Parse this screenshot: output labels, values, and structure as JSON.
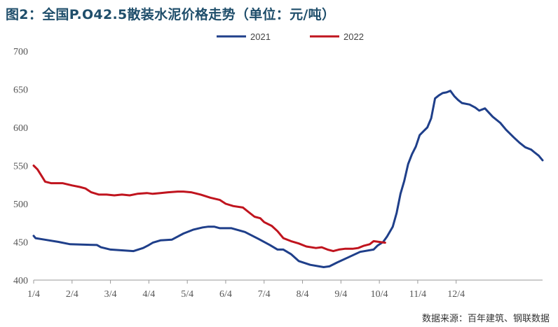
{
  "title": "图2：全国P.O42.5散装水泥价格走势（单位：元/吨）",
  "source": "数据来源：百年建筑、钢联数据",
  "chart_data": {
    "type": "line",
    "title": "图2：全国P.O42.5散装水泥价格走势（单位：元/吨）",
    "xlabel": "",
    "ylabel": "",
    "ylim": [
      400,
      700
    ],
    "yticks": [
      400,
      450,
      500,
      550,
      600,
      650,
      700
    ],
    "categories": [
      "1/4",
      "2/4",
      "3/4",
      "4/4",
      "5/4",
      "6/4",
      "7/4",
      "8/4",
      "9/4",
      "10/4",
      "11/4",
      "12/4"
    ],
    "grid": false,
    "legend": "top-center",
    "series": [
      {
        "name": "2021",
        "color": "#1f3f8a",
        "points": [
          [
            0.0,
            458
          ],
          [
            0.05,
            455
          ],
          [
            0.28,
            453
          ],
          [
            0.65,
            450
          ],
          [
            0.95,
            447
          ],
          [
            1.65,
            446
          ],
          [
            1.75,
            443
          ],
          [
            2.0,
            440
          ],
          [
            2.3,
            439
          ],
          [
            2.6,
            438
          ],
          [
            2.85,
            442
          ],
          [
            3.0,
            446
          ],
          [
            3.1,
            449
          ],
          [
            3.3,
            452
          ],
          [
            3.6,
            453
          ],
          [
            3.9,
            461
          ],
          [
            4.15,
            466
          ],
          [
            4.4,
            469
          ],
          [
            4.55,
            470
          ],
          [
            4.7,
            470
          ],
          [
            4.85,
            468
          ],
          [
            5.15,
            468
          ],
          [
            5.5,
            463
          ],
          [
            5.85,
            454
          ],
          [
            6.15,
            446
          ],
          [
            6.35,
            440
          ],
          [
            6.5,
            440
          ],
          [
            6.7,
            434
          ],
          [
            6.9,
            425
          ],
          [
            7.2,
            420
          ],
          [
            7.55,
            417
          ],
          [
            7.7,
            418
          ],
          [
            7.9,
            423
          ],
          [
            8.2,
            430
          ],
          [
            8.5,
            437
          ],
          [
            8.85,
            440
          ],
          [
            8.95,
            445
          ],
          [
            9.1,
            450
          ],
          [
            9.2,
            457
          ],
          [
            9.35,
            470
          ],
          [
            9.45,
            488
          ],
          [
            9.55,
            513
          ],
          [
            9.65,
            530
          ],
          [
            9.75,
            552
          ],
          [
            9.85,
            565
          ],
          [
            9.95,
            575
          ],
          [
            10.05,
            590
          ],
          [
            10.15,
            595
          ],
          [
            10.25,
            600
          ],
          [
            10.35,
            612
          ],
          [
            10.45,
            638
          ],
          [
            10.55,
            642
          ],
          [
            10.65,
            645
          ],
          [
            10.75,
            646
          ],
          [
            10.85,
            648
          ],
          [
            10.95,
            641
          ],
          [
            11.05,
            636
          ],
          [
            11.15,
            632
          ],
          [
            11.35,
            630
          ],
          [
            11.5,
            626
          ],
          [
            11.6,
            622
          ],
          [
            11.75,
            625
          ],
          [
            11.95,
            614
          ],
          [
            12.15,
            606
          ],
          [
            12.3,
            597
          ],
          [
            12.5,
            587
          ],
          [
            12.65,
            580
          ],
          [
            12.8,
            574
          ],
          [
            12.95,
            571
          ],
          [
            13.05,
            567
          ],
          [
            13.15,
            563
          ],
          [
            13.25,
            557
          ]
        ]
      },
      {
        "name": "2022",
        "color": "#c0141e",
        "points": [
          [
            0.0,
            550
          ],
          [
            0.1,
            545
          ],
          [
            0.2,
            537
          ],
          [
            0.3,
            529
          ],
          [
            0.45,
            527
          ],
          [
            0.75,
            527
          ],
          [
            1.0,
            524
          ],
          [
            1.2,
            522
          ],
          [
            1.35,
            520
          ],
          [
            1.5,
            515
          ],
          [
            1.7,
            512
          ],
          [
            1.9,
            512
          ],
          [
            2.1,
            511
          ],
          [
            2.3,
            512
          ],
          [
            2.5,
            511
          ],
          [
            2.7,
            513
          ],
          [
            2.95,
            514
          ],
          [
            3.1,
            513
          ],
          [
            3.3,
            514
          ],
          [
            3.5,
            515
          ],
          [
            3.75,
            516
          ],
          [
            3.9,
            516
          ],
          [
            4.1,
            515
          ],
          [
            4.35,
            512
          ],
          [
            4.6,
            508
          ],
          [
            4.85,
            505
          ],
          [
            5.0,
            500
          ],
          [
            5.2,
            497
          ],
          [
            5.45,
            495
          ],
          [
            5.6,
            489
          ],
          [
            5.75,
            483
          ],
          [
            5.9,
            481
          ],
          [
            6.0,
            476
          ],
          [
            6.2,
            471
          ],
          [
            6.35,
            464
          ],
          [
            6.5,
            455
          ],
          [
            6.7,
            451
          ],
          [
            6.9,
            448
          ],
          [
            7.1,
            444
          ],
          [
            7.35,
            442
          ],
          [
            7.5,
            443
          ],
          [
            7.65,
            440
          ],
          [
            7.8,
            438
          ],
          [
            7.95,
            440
          ],
          [
            8.1,
            441
          ],
          [
            8.3,
            441
          ],
          [
            8.45,
            442
          ],
          [
            8.6,
            445
          ],
          [
            8.75,
            447
          ],
          [
            8.85,
            451
          ],
          [
            9.0,
            450
          ],
          [
            9.15,
            449
          ]
        ]
      }
    ]
  }
}
